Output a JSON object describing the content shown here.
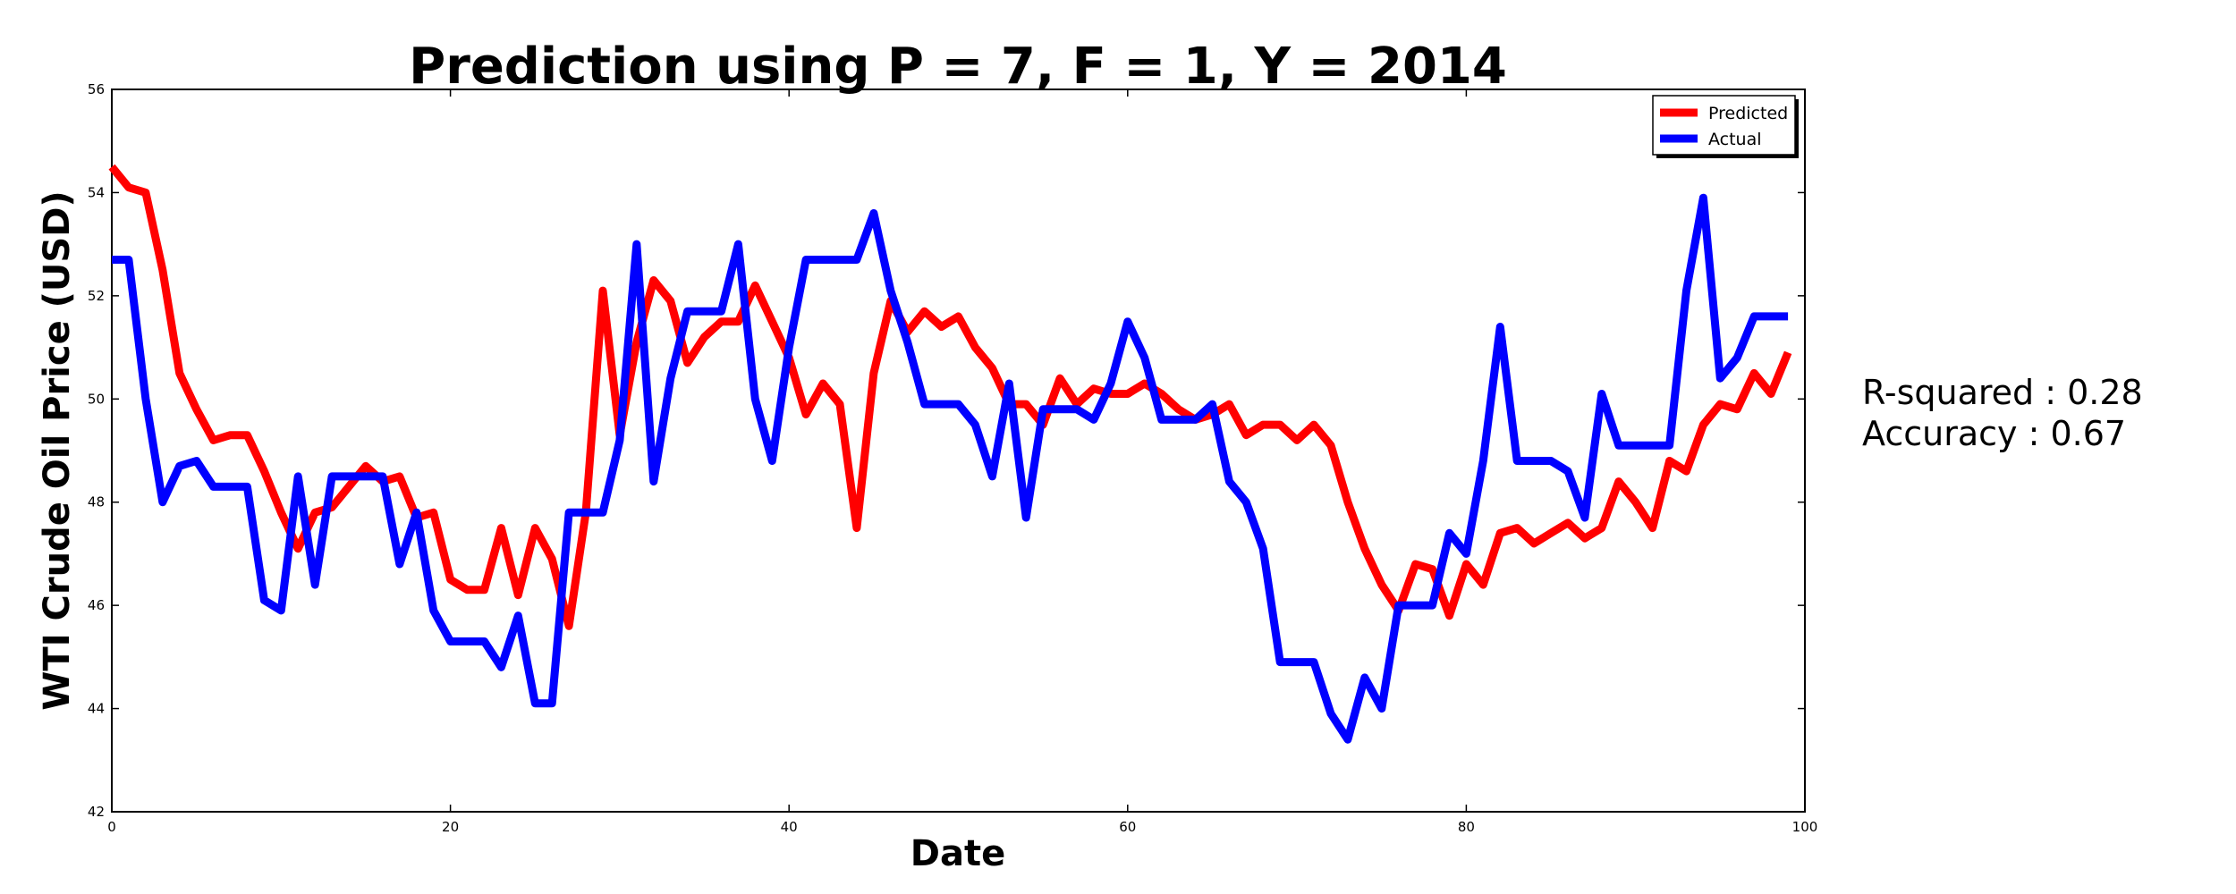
{
  "chart_data": {
    "type": "line",
    "title": "Prediction using P = 7, F = 1, Y = 2014",
    "xlabel": "Date",
    "ylabel": "WTI Crude Oil Price (USD)",
    "xlim": [
      0,
      100
    ],
    "ylim": [
      42,
      56
    ],
    "xticks": [
      0,
      20,
      40,
      60,
      80,
      100
    ],
    "yticks": [
      42,
      44,
      46,
      48,
      50,
      52,
      54,
      56
    ],
    "grid": false,
    "legend": "top-right",
    "series": [
      {
        "name": "Predicted",
        "color": "#ff0000",
        "values": [
          54.5,
          54.1,
          54.0,
          52.5,
          50.5,
          49.8,
          49.2,
          49.3,
          49.3,
          48.6,
          47.8,
          47.1,
          47.8,
          47.9,
          48.3,
          48.7,
          48.4,
          48.5,
          47.7,
          47.8,
          46.5,
          46.3,
          46.3,
          47.5,
          46.2,
          47.5,
          46.9,
          45.6,
          47.8,
          52.1,
          49.3,
          51.1,
          52.3,
          51.9,
          50.7,
          51.2,
          51.5,
          51.5,
          52.2,
          51.5,
          50.8,
          49.7,
          50.3,
          49.9,
          47.5,
          50.5,
          51.9,
          51.3,
          51.7,
          51.4,
          51.6,
          51.0,
          50.6,
          49.9,
          49.9,
          49.5,
          50.4,
          49.9,
          50.2,
          50.1,
          50.1,
          50.3,
          50.1,
          49.8,
          49.6,
          49.7,
          49.9,
          49.3,
          49.5,
          49.5,
          49.2,
          49.5,
          49.1,
          48.0,
          47.1,
          46.4,
          45.9,
          46.8,
          46.7,
          45.8,
          46.8,
          46.4,
          47.4,
          47.5,
          47.2,
          47.4,
          47.6,
          47.3,
          47.5,
          48.4,
          48.0,
          47.5,
          48.8,
          48.6,
          49.5,
          49.9,
          49.8,
          50.5,
          50.1,
          50.9
        ]
      },
      {
        "name": "Actual",
        "color": "#0000ff",
        "values": [
          52.7,
          52.7,
          50.0,
          48.0,
          48.7,
          48.8,
          48.3,
          48.3,
          48.3,
          46.1,
          45.9,
          48.5,
          46.4,
          48.5,
          48.5,
          48.5,
          48.5,
          46.8,
          47.8,
          45.9,
          45.3,
          45.3,
          45.3,
          44.8,
          45.8,
          44.1,
          44.1,
          47.8,
          47.8,
          47.8,
          49.2,
          53.0,
          48.4,
          50.4,
          51.7,
          51.7,
          51.7,
          53.0,
          50.0,
          48.8,
          51.0,
          52.7,
          52.7,
          52.7,
          52.7,
          53.6,
          52.1,
          51.1,
          49.9,
          49.9,
          49.9,
          49.5,
          48.5,
          50.3,
          47.7,
          49.8,
          49.8,
          49.8,
          49.6,
          50.3,
          51.5,
          50.8,
          49.6,
          49.6,
          49.6,
          49.9,
          48.4,
          48.0,
          47.1,
          44.9,
          44.9,
          44.9,
          43.9,
          43.4,
          44.6,
          44.0,
          46.0,
          46.0,
          46.0,
          47.4,
          47.0,
          48.8,
          51.4,
          48.8,
          48.8,
          48.8,
          48.6,
          47.7,
          50.1,
          49.1,
          49.1,
          49.1,
          49.1,
          52.1,
          53.9,
          50.4,
          50.8,
          51.6,
          51.6,
          51.6
        ]
      }
    ]
  },
  "annotations": {
    "r_squared": "R-squared : 0.28",
    "accuracy": "Accuracy : 0.67"
  }
}
